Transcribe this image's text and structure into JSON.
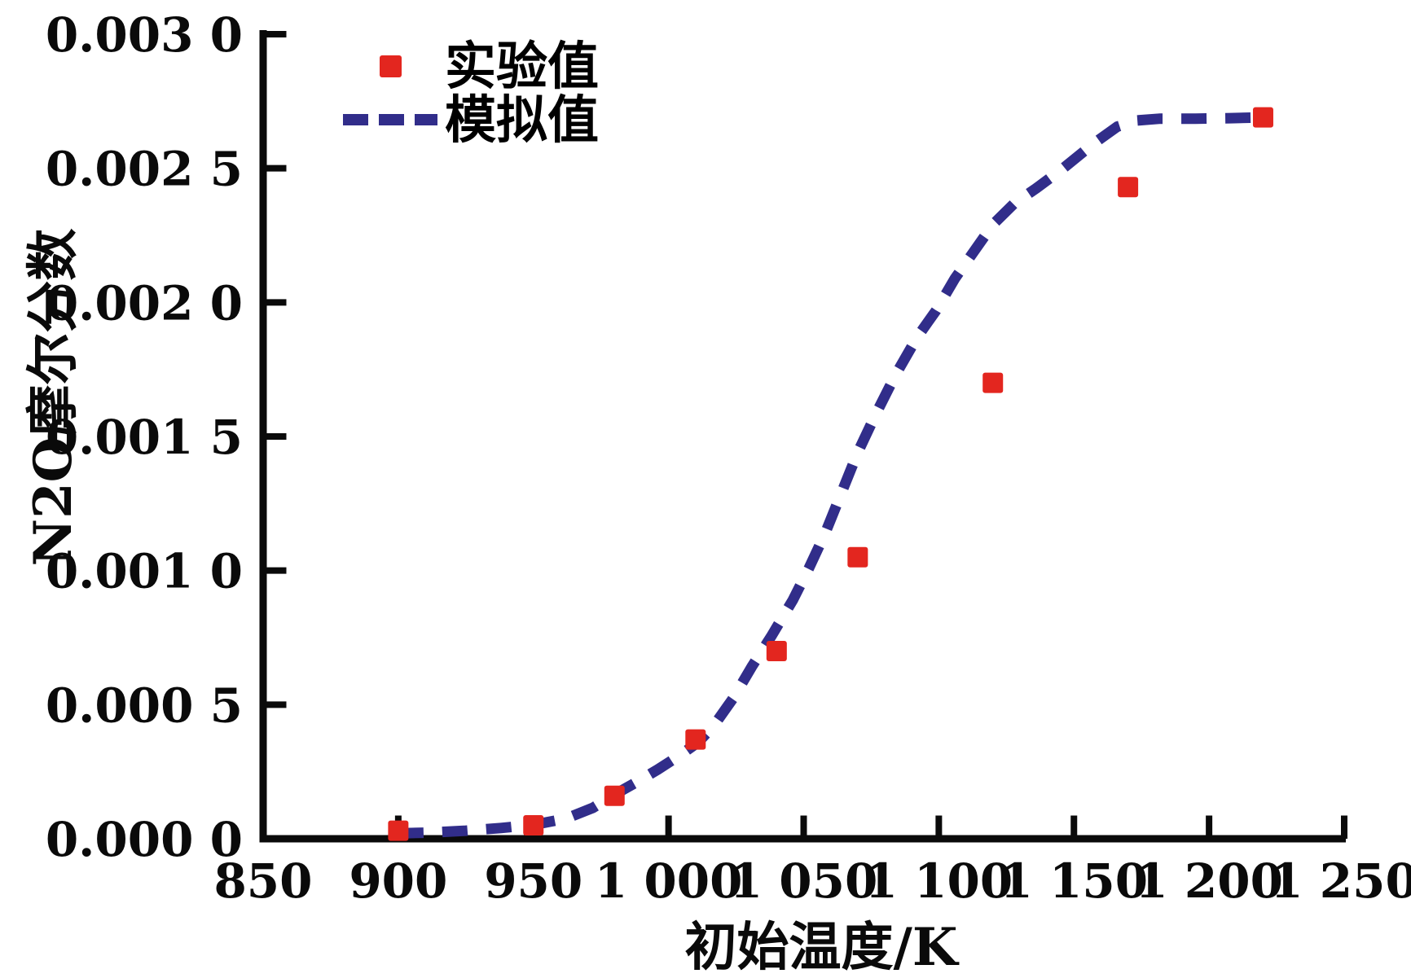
{
  "page": {
    "background": "#ffffff"
  },
  "colors": {
    "experimental": "#e3261f",
    "simulated": "#312d8a",
    "axis": "#0a0a0a",
    "text": "#0a0a0a",
    "background": "#ffffff"
  },
  "legend": {
    "position": "upper-left",
    "items": [
      {
        "label": "实验值",
        "swatch": "square"
      },
      {
        "label": "模拟值",
        "swatch": "dashes"
      }
    ]
  },
  "chart_data": {
    "type": "scatter",
    "title": "",
    "xlabel": "初始温度/K",
    "ylabel": "N2O摩尔分数",
    "xlim": [
      850,
      1250
    ],
    "ylim": [
      0,
      0.003
    ],
    "grid": false,
    "legend_position": "upper-left",
    "x_ticks": [
      {
        "value": 850,
        "label": "850"
      },
      {
        "value": 900,
        "label": "900"
      },
      {
        "value": 950,
        "label": "950"
      },
      {
        "value": 1000,
        "label": "1 000"
      },
      {
        "value": 1050,
        "label": "1 050"
      },
      {
        "value": 1100,
        "label": "1 100"
      },
      {
        "value": 1150,
        "label": "1 150"
      },
      {
        "value": 1200,
        "label": "1 200"
      },
      {
        "value": 1250,
        "label": "1 250"
      }
    ],
    "y_ticks": [
      {
        "value": 0.0,
        "label": "0.000 0"
      },
      {
        "value": 0.0005,
        "label": "0.000 5"
      },
      {
        "value": 0.001,
        "label": "0.001 0"
      },
      {
        "value": 0.0015,
        "label": "0.001 5"
      },
      {
        "value": 0.002,
        "label": "0.002 0"
      },
      {
        "value": 0.0025,
        "label": "0.002 5"
      },
      {
        "value": 0.003,
        "label": "0.003 0"
      }
    ],
    "series": [
      {
        "name": "实验值",
        "type": "scatter",
        "marker": "square",
        "color": "#e3261f",
        "points": [
          [
            900,
            3e-05
          ],
          [
            950,
            5e-05
          ],
          [
            980,
            0.00016
          ],
          [
            1010,
            0.00037
          ],
          [
            1040,
            0.0007
          ],
          [
            1070,
            0.00105
          ],
          [
            1120,
            0.0017
          ],
          [
            1170,
            0.00243
          ],
          [
            1220,
            0.00269
          ]
        ]
      },
      {
        "name": "模拟值",
        "type": "line",
        "line_style": "dashed",
        "color": "#312d8a",
        "points": [
          [
            900,
            2e-05
          ],
          [
            912,
            2.3e-05
          ],
          [
            925,
            3e-05
          ],
          [
            938,
            4e-05
          ],
          [
            950,
            5.2e-05
          ],
          [
            962,
            7.5e-05
          ],
          [
            972,
            0.000115
          ],
          [
            980,
            0.000165
          ],
          [
            988,
            0.00021
          ],
          [
            996,
            0.000258
          ],
          [
            1004,
            0.00031
          ],
          [
            1011,
            0.00036
          ],
          [
            1017,
            0.000425
          ],
          [
            1024,
            0.000525
          ],
          [
            1031,
            0.000645
          ],
          [
            1038,
            0.000755
          ],
          [
            1046,
            0.00089
          ],
          [
            1052,
            0.00101
          ],
          [
            1058,
            0.00114
          ],
          [
            1064,
            0.00129
          ],
          [
            1070,
            0.00144
          ],
          [
            1077,
            0.00159
          ],
          [
            1084,
            0.00173
          ],
          [
            1092,
            0.00187
          ],
          [
            1099,
            0.00197
          ],
          [
            1106,
            0.00209
          ],
          [
            1113,
            0.00219
          ],
          [
            1120,
            0.00229
          ],
          [
            1128,
            0.00237
          ],
          [
            1136,
            0.002425
          ],
          [
            1146,
            0.0025
          ],
          [
            1157,
            0.00259
          ],
          [
            1166,
            0.002655
          ],
          [
            1173,
            0.002678
          ],
          [
            1182,
            0.002685
          ],
          [
            1195,
            0.002685
          ],
          [
            1208,
            0.002687
          ],
          [
            1221,
            0.00269
          ]
        ]
      }
    ]
  }
}
